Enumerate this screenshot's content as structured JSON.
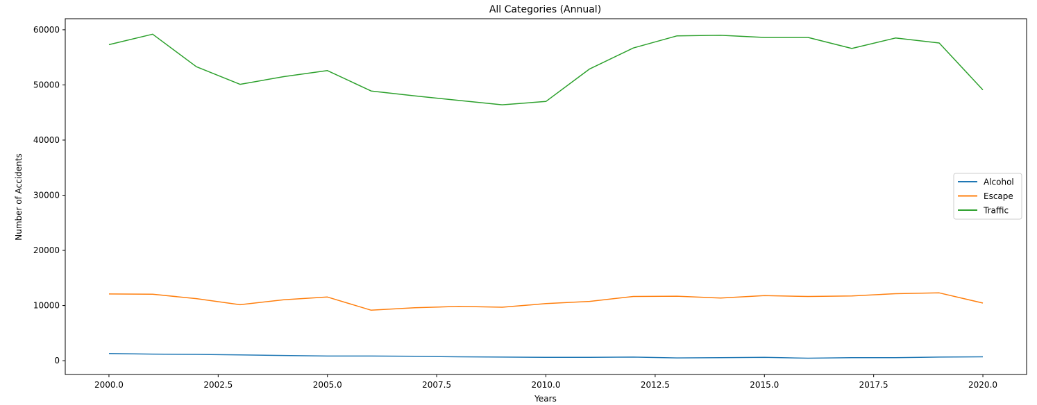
{
  "chart_data": {
    "type": "line",
    "title": "All Categories (Annual)",
    "xlabel": "Years",
    "ylabel": "Number of Accidents",
    "x": [
      2000,
      2001,
      2002,
      2003,
      2004,
      2005,
      2006,
      2007,
      2008,
      2009,
      2010,
      2011,
      2012,
      2013,
      2014,
      2015,
      2016,
      2017,
      2018,
      2019,
      2020
    ],
    "xlim": [
      1999,
      2021
    ],
    "ylim": [
      -2500,
      62000
    ],
    "x_ticks": [
      2000.0,
      2002.5,
      2005.0,
      2007.5,
      2010.0,
      2012.5,
      2015.0,
      2017.5,
      2020.0
    ],
    "x_tick_labels": [
      "2000.0",
      "2002.5",
      "2005.0",
      "2007.5",
      "2010.0",
      "2012.5",
      "2015.0",
      "2017.5",
      "2020.0"
    ],
    "y_ticks": [
      0,
      10000,
      20000,
      30000,
      40000,
      50000,
      60000
    ],
    "y_tick_labels": [
      "0",
      "10000",
      "20000",
      "30000",
      "40000",
      "50000",
      "60000"
    ],
    "grid": false,
    "legend_position": "center-right",
    "series": [
      {
        "name": "Alcohol",
        "color": "#1f77b4",
        "values": [
          1300,
          1200,
          1150,
          1050,
          950,
          850,
          850,
          800,
          700,
          650,
          600,
          600,
          650,
          500,
          550,
          600,
          450,
          550,
          550,
          650,
          700
        ]
      },
      {
        "name": "Escape",
        "color": "#ff7f0e",
        "values": [
          12100,
          12050,
          11250,
          10150,
          11050,
          11550,
          9150,
          9600,
          9850,
          9700,
          10350,
          10750,
          11650,
          11700,
          11350,
          11800,
          11650,
          11750,
          12150,
          12300,
          10450
        ]
      },
      {
        "name": "Traffic",
        "color": "#2ca02c",
        "values": [
          57300,
          59200,
          53300,
          50100,
          51500,
          52600,
          48900,
          48000,
          47200,
          46400,
          47000,
          52900,
          56700,
          58900,
          59000,
          58600,
          58600,
          56600,
          58500,
          57600,
          49100
        ]
      }
    ]
  }
}
